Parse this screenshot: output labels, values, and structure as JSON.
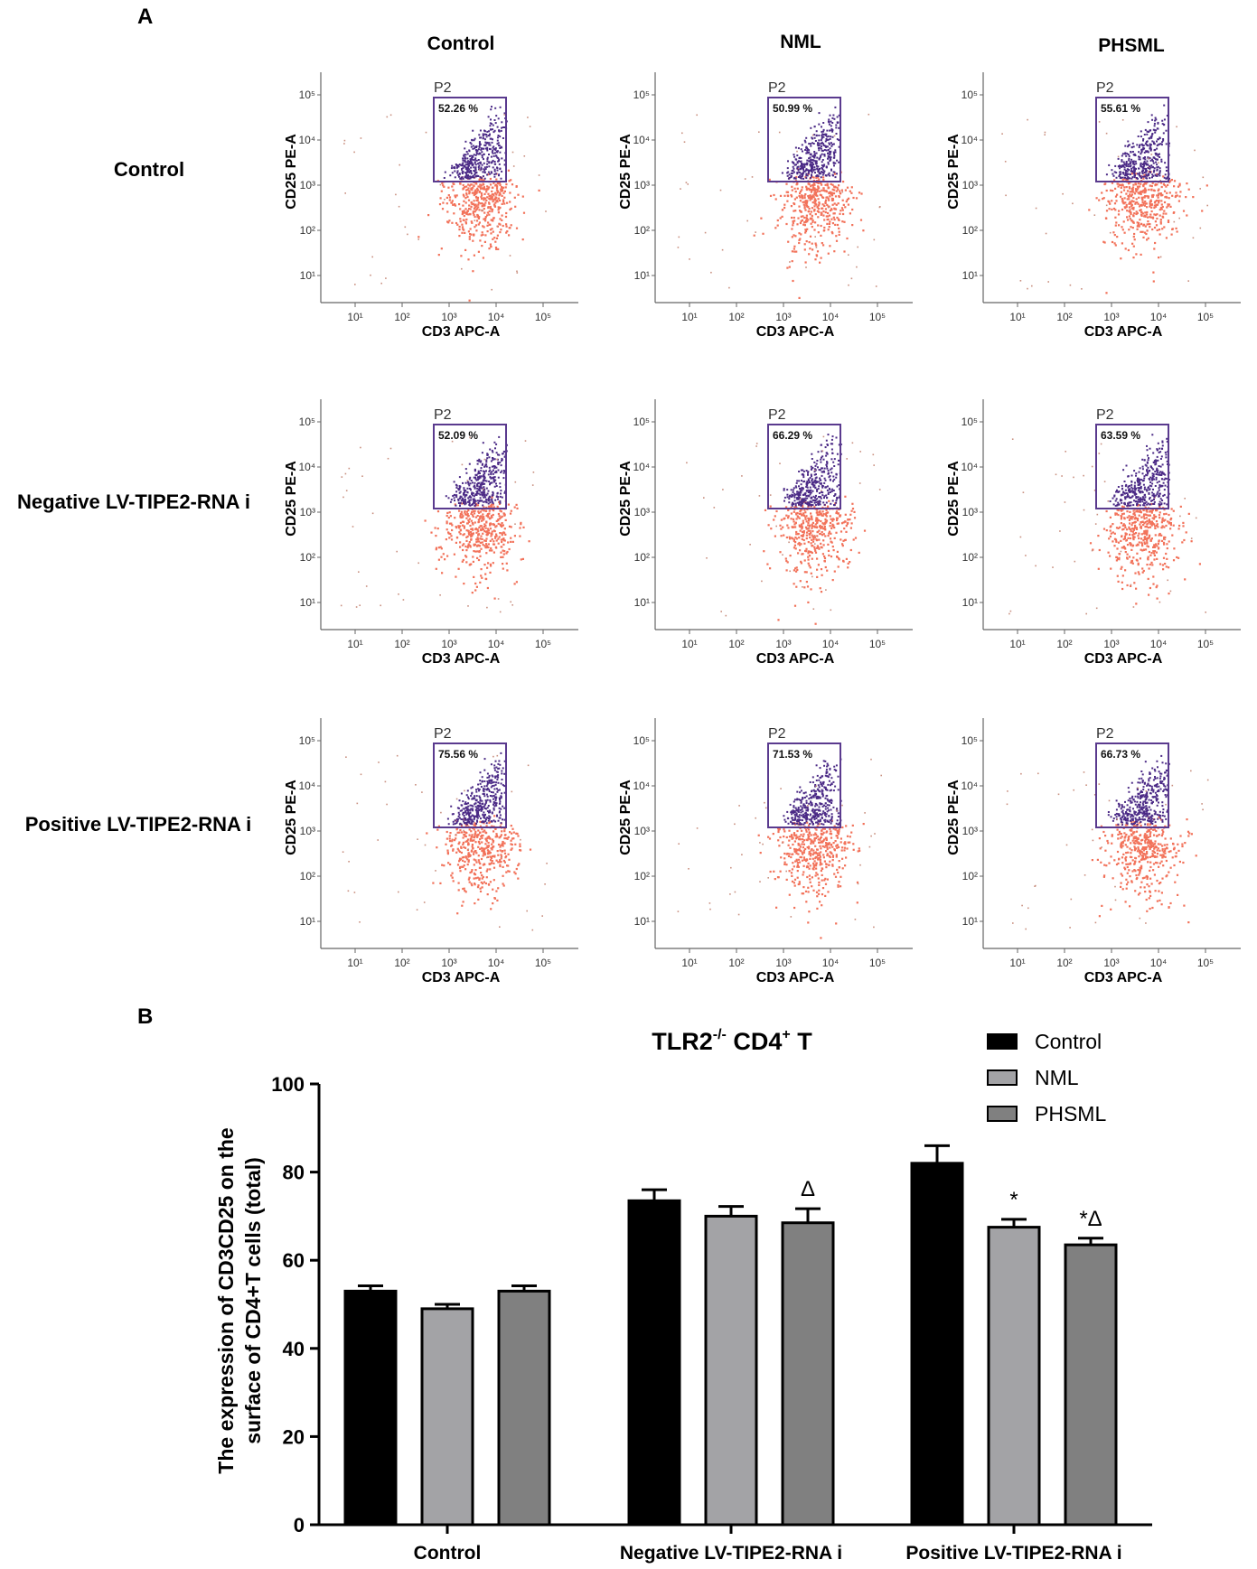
{
  "panel_a": {
    "label": "A",
    "column_headers": [
      "Control",
      "NML",
      "PHSML"
    ],
    "row_labels": [
      "Control",
      "Negative LV-TIPE2-RNA i",
      "Positive LV-TIPE2-RNA i"
    ],
    "x_axis_label": "CD3 APC-A",
    "y_axis_label": "CD25 PE-A",
    "gate_label": "P2",
    "tick_labels": [
      "10¹",
      "10²",
      "10³",
      "10⁴",
      "10⁵"
    ],
    "gates": [
      [
        "52.26 %",
        "50.99 %",
        "55.61 %"
      ],
      [
        "52.09 %",
        "66.29 %",
        "63.59 %"
      ],
      [
        "75.56 %",
        "71.53 %",
        "66.73 %"
      ]
    ],
    "colors": {
      "gated": "#4b2a86",
      "ungated": "#f2725a",
      "gate_box": "#5a3a8e"
    }
  },
  "panel_b": {
    "label": "B",
    "title_parts": [
      "TLR2",
      "-/-",
      " CD4",
      "+",
      " T"
    ]
  },
  "chart_data": {
    "type": "bar",
    "categories": [
      "Control",
      "Negative LV-TIPE2-RNA i",
      "Positive LV-TIPE2-RNA i"
    ],
    "series": [
      {
        "name": "Control",
        "values": [
          53,
          73.5,
          82
        ],
        "errors": [
          1.2,
          2.5,
          4
        ],
        "color": "#000000"
      },
      {
        "name": "NML",
        "values": [
          49,
          70,
          67.5
        ],
        "errors": [
          1,
          2.2,
          1.8
        ],
        "color": "#a3a3a6"
      },
      {
        "name": "PHSML",
        "values": [
          53,
          68.5,
          63.5
        ],
        "errors": [
          1.2,
          3.2,
          1.5
        ],
        "color": "#808080"
      }
    ],
    "annotations": [
      {
        "category": 1,
        "series": 2,
        "text": "Δ"
      },
      {
        "category": 2,
        "series": 1,
        "text": "*"
      },
      {
        "category": 2,
        "series": 2,
        "text": "*Δ"
      }
    ],
    "ylabel_lines": [
      "The expression of CD3CD25 on the",
      "surface of CD4+T cells (total)"
    ],
    "ylim": [
      0,
      100
    ],
    "yticks": [
      0,
      20,
      40,
      60,
      80,
      100
    ],
    "legend_position": "top-right"
  }
}
